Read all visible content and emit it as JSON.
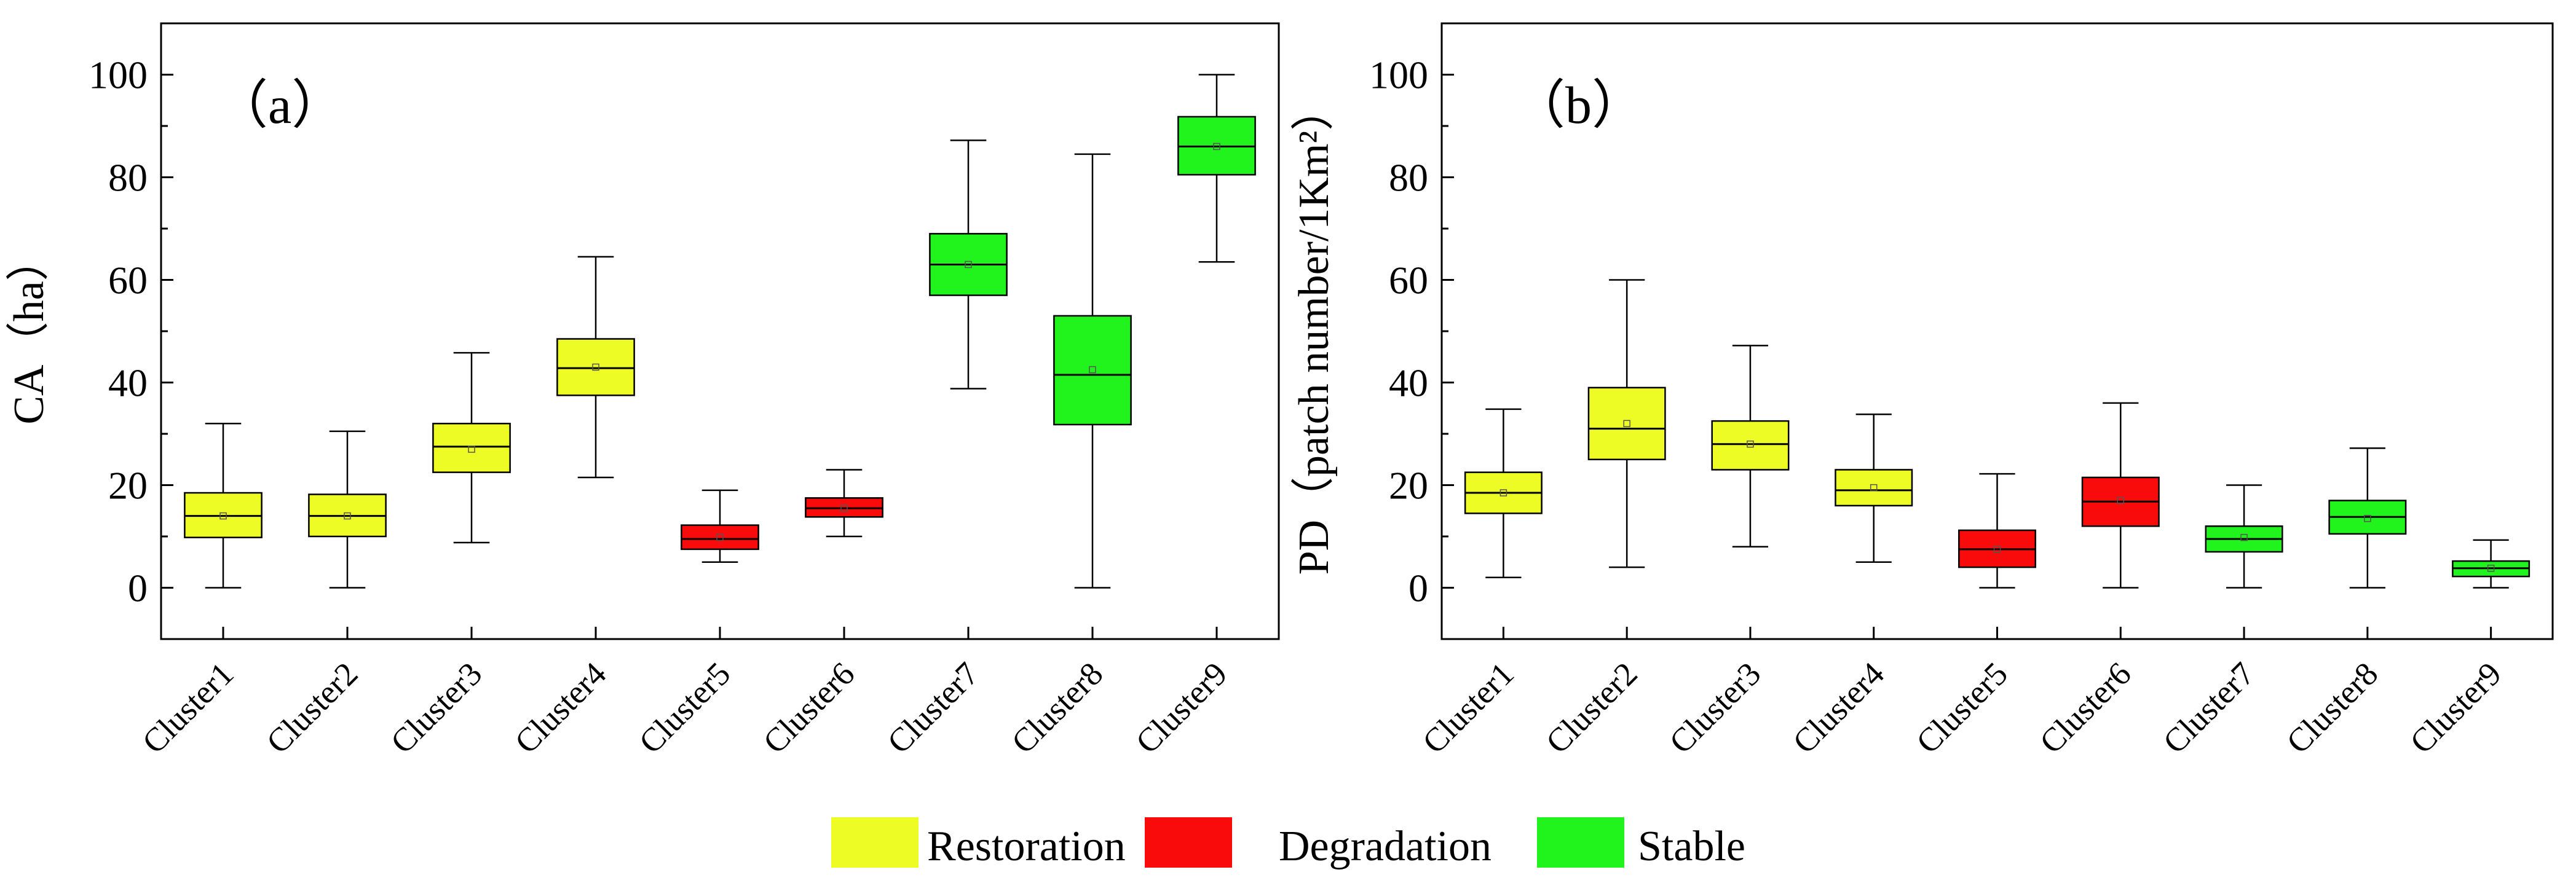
{
  "legend": {
    "items": [
      {
        "label": "Restoration",
        "color": "#EEFC25"
      },
      {
        "label": "Degradation",
        "color": "#FA0B0B"
      },
      {
        "label": "Stable",
        "color": "#21F41C"
      }
    ]
  },
  "chart_data": [
    {
      "type": "box",
      "panel_label": "（a）",
      "ylabel": "CA（ha）",
      "ylim": [
        -10,
        110
      ],
      "yticks": [
        0,
        20,
        40,
        60,
        80,
        100
      ],
      "categories": [
        "Cluster1",
        "Cluster2",
        "Cluster3",
        "Cluster4",
        "Cluster5",
        "Cluster6",
        "Cluster7",
        "Cluster8",
        "Cluster9"
      ],
      "groups": [
        "Restoration",
        "Restoration",
        "Restoration",
        "Restoration",
        "Degradation",
        "Degradation",
        "Stable",
        "Stable",
        "Stable"
      ],
      "boxes": [
        {
          "min": 0,
          "q1": 9.8,
          "median": 14,
          "q3": 18.5,
          "max": 32,
          "mean": 14
        },
        {
          "min": 0,
          "q1": 10,
          "median": 14,
          "q3": 18.2,
          "max": 30.5,
          "mean": 14
        },
        {
          "min": 8.8,
          "q1": 22.5,
          "median": 27.5,
          "q3": 32,
          "max": 45.8,
          "mean": 27
        },
        {
          "min": 21.5,
          "q1": 37.5,
          "median": 42.8,
          "q3": 48.5,
          "max": 64.5,
          "mean": 43
        },
        {
          "min": 5,
          "q1": 7.5,
          "median": 9.5,
          "q3": 12.2,
          "max": 19,
          "mean": 9.8
        },
        {
          "min": 10,
          "q1": 13.8,
          "median": 15.5,
          "q3": 17.5,
          "max": 23,
          "mean": 15.5
        },
        {
          "min": 38.8,
          "q1": 57,
          "median": 63,
          "q3": 69,
          "max": 87.2,
          "mean": 63
        },
        {
          "min": 0,
          "q1": 31.8,
          "median": 41.5,
          "q3": 53,
          "max": 84.5,
          "mean": 42.5
        },
        {
          "min": 63.5,
          "q1": 80.5,
          "median": 86,
          "q3": 91.8,
          "max": 100,
          "mean": 86
        }
      ]
    },
    {
      "type": "box",
      "panel_label": "（b）",
      "ylabel": "PD（patch number/1Km²）",
      "ylim": [
        -10,
        110
      ],
      "yticks": [
        0,
        20,
        40,
        60,
        80,
        100
      ],
      "categories": [
        "Cluster1",
        "Cluster2",
        "Cluster3",
        "Cluster4",
        "Cluster5",
        "Cluster6",
        "Cluster7",
        "Cluster8",
        "Cluster9"
      ],
      "groups": [
        "Restoration",
        "Restoration",
        "Restoration",
        "Restoration",
        "Degradation",
        "Degradation",
        "Stable",
        "Stable",
        "Stable"
      ],
      "boxes": [
        {
          "min": 2,
          "q1": 14.5,
          "median": 18.5,
          "q3": 22.5,
          "max": 34.8,
          "mean": 18.5
        },
        {
          "min": 4,
          "q1": 25,
          "median": 31,
          "q3": 39,
          "max": 60,
          "mean": 32
        },
        {
          "min": 8,
          "q1": 23,
          "median": 28,
          "q3": 32.5,
          "max": 47.2,
          "mean": 28
        },
        {
          "min": 5,
          "q1": 16,
          "median": 19,
          "q3": 23,
          "max": 33.8,
          "mean": 19.5
        },
        {
          "min": 0,
          "q1": 4,
          "median": 7.5,
          "q3": 11.2,
          "max": 22.2,
          "mean": 7.5
        },
        {
          "min": 0,
          "q1": 12,
          "median": 16.8,
          "q3": 21.5,
          "max": 36,
          "mean": 17
        },
        {
          "min": 0,
          "q1": 7,
          "median": 9.5,
          "q3": 12,
          "max": 20,
          "mean": 9.8
        },
        {
          "min": 0,
          "q1": 10.5,
          "median": 13.8,
          "q3": 17,
          "max": 27.2,
          "mean": 13.5
        },
        {
          "min": 0,
          "q1": 2.2,
          "median": 3.8,
          "q3": 5.2,
          "max": 9.3,
          "mean": 3.8
        }
      ]
    }
  ]
}
